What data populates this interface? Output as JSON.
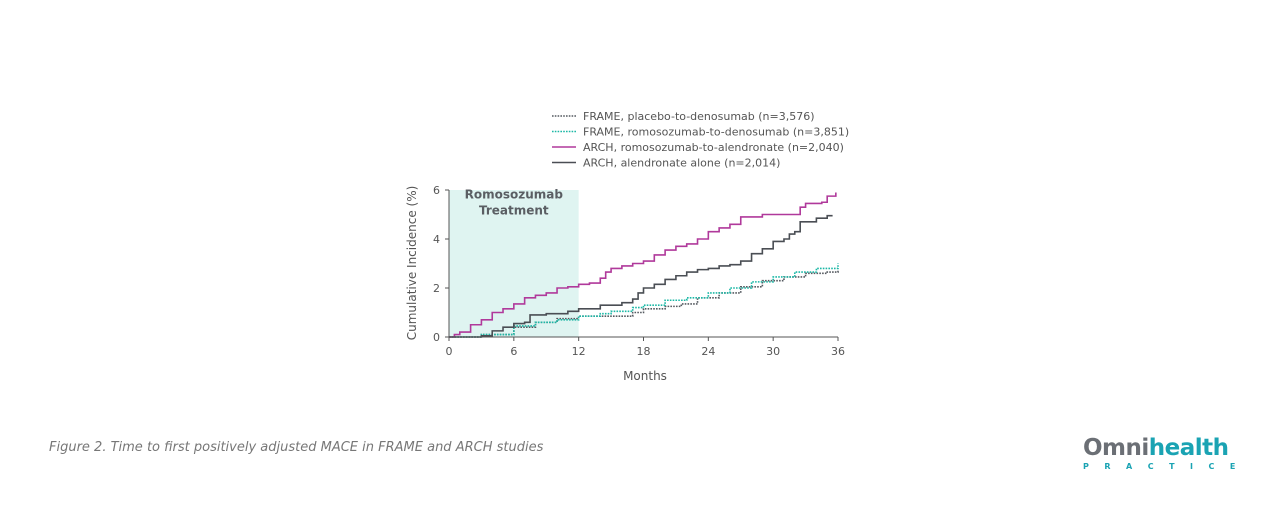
{
  "chart_data": {
    "type": "line",
    "step": true,
    "xlabel": "Months",
    "ylabel": "Cumulative Incidence (%)",
    "xlim": [
      0,
      36
    ],
    "ylim": [
      0,
      6
    ],
    "xticks": [
      0,
      6,
      12,
      18,
      24,
      30,
      36
    ],
    "yticks": [
      0,
      2,
      4,
      6
    ],
    "grid": false,
    "legend_position": "top",
    "shaded_region": {
      "x": [
        0,
        12
      ],
      "label_line1": "Romosozumab",
      "label_line2": "Treatment",
      "color": "#dff4f1"
    },
    "series": [
      {
        "name": "FRAME, placebo-to-denosumab (n=3,576)",
        "color": "#555a60",
        "style": "dotted",
        "x": [
          0,
          3,
          6,
          8,
          10,
          12,
          16,
          17,
          18,
          20,
          21.5,
          23,
          25,
          27,
          29,
          31,
          33,
          35,
          36
        ],
        "y": [
          0,
          0.1,
          0.4,
          0.6,
          0.75,
          0.85,
          0.85,
          1.0,
          1.15,
          1.25,
          1.35,
          1.6,
          1.8,
          2.05,
          2.3,
          2.45,
          2.6,
          2.65,
          2.75
        ]
      },
      {
        "name": "FRAME, romosozumab-to-denosumab (n=3,851)",
        "color": "#1cb8a6",
        "style": "dotted",
        "x": [
          0,
          3,
          6,
          8,
          10,
          12,
          14,
          15,
          17,
          18,
          20,
          22,
          24,
          26,
          28,
          30,
          32,
          34,
          36
        ],
        "y": [
          0,
          0.1,
          0.45,
          0.6,
          0.7,
          0.85,
          0.95,
          1.05,
          1.2,
          1.3,
          1.5,
          1.6,
          1.8,
          2.0,
          2.25,
          2.45,
          2.65,
          2.8,
          3.0
        ]
      },
      {
        "name": "ARCH, romosozumab-to-alendronate (n=2,040)",
        "color": "#b0399b",
        "style": "solid",
        "x": [
          0,
          0.5,
          1,
          2,
          3,
          4,
          5,
          6,
          7,
          8,
          9,
          10,
          11,
          12,
          13,
          14,
          14.5,
          15,
          16,
          17,
          18,
          19,
          20,
          21,
          22,
          23,
          24,
          25,
          26,
          27,
          29,
          32,
          32.5,
          33,
          34.5,
          35,
          35.8
        ],
        "y": [
          0,
          0.1,
          0.2,
          0.5,
          0.7,
          1.0,
          1.15,
          1.35,
          1.6,
          1.7,
          1.8,
          2.0,
          2.05,
          2.15,
          2.2,
          2.4,
          2.65,
          2.8,
          2.9,
          3.0,
          3.1,
          3.35,
          3.55,
          3.7,
          3.8,
          4.0,
          4.3,
          4.45,
          4.6,
          4.9,
          5.0,
          5.0,
          5.3,
          5.45,
          5.5,
          5.75,
          5.9
        ]
      },
      {
        "name": "ARCH, alendronate alone (n=2,014)",
        "color": "#4a4e54",
        "style": "solid",
        "x": [
          0,
          3,
          4,
          5,
          6,
          7,
          7.5,
          9,
          11,
          12,
          14,
          16,
          17,
          17.5,
          18,
          19,
          20,
          21,
          22,
          23,
          24,
          25,
          26,
          27,
          28,
          29,
          30,
          31,
          31.5,
          32,
          32.5,
          34,
          35,
          35.5
        ],
        "y": [
          0,
          0.05,
          0.25,
          0.4,
          0.55,
          0.6,
          0.9,
          0.95,
          1.05,
          1.15,
          1.3,
          1.4,
          1.55,
          1.8,
          2.0,
          2.15,
          2.35,
          2.5,
          2.65,
          2.75,
          2.8,
          2.9,
          2.95,
          3.1,
          3.4,
          3.6,
          3.9,
          4.0,
          4.2,
          4.3,
          4.7,
          4.85,
          4.95,
          4.95
        ]
      }
    ]
  },
  "caption": "Figure 2. Time to first positively adjusted MACE in FRAME and ARCH studies",
  "logo": {
    "word_part1": "Omni",
    "word_part2": "health",
    "sub": "PRACTICE"
  }
}
